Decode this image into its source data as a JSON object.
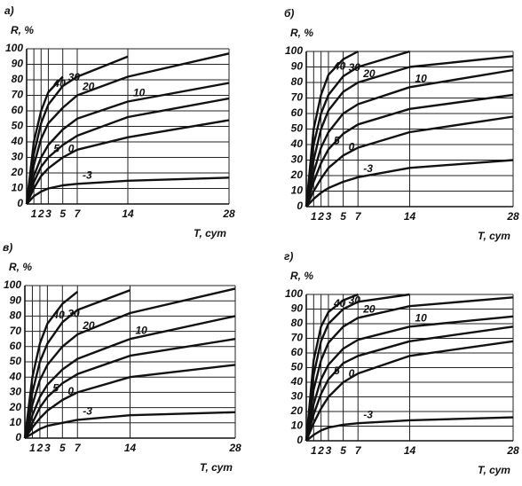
{
  "chart_data": [
    {
      "type": "line",
      "title": "а)",
      "y_label": "R, %",
      "x_label": "T, сут",
      "x": [
        0,
        1,
        2,
        3,
        5,
        7,
        14,
        28
      ],
      "xlim": [
        0,
        28
      ],
      "ylim": [
        0,
        100
      ],
      "xticks": [
        1,
        2,
        3,
        5,
        7,
        14,
        28
      ],
      "yticks": [
        0,
        10,
        20,
        30,
        40,
        50,
        60,
        70,
        80,
        90,
        100
      ],
      "grid": true,
      "series": [
        {
          "name": "40",
          "color": "#111111",
          "values": [
            0,
            40,
            60,
            72,
            82,
            null,
            null,
            null
          ]
        },
        {
          "name": "30",
          "color": "#111111",
          "values": [
            0,
            32,
            52,
            64,
            76,
            82,
            95,
            null
          ]
        },
        {
          "name": "20",
          "color": "#111111",
          "values": [
            0,
            25,
            42,
            52,
            62,
            70,
            82,
            97
          ]
        },
        {
          "name": "10",
          "color": "#111111",
          "values": [
            0,
            18,
            30,
            38,
            48,
            55,
            66,
            78
          ]
        },
        {
          "name": "5",
          "color": "#111111",
          "values": [
            0,
            14,
            24,
            30,
            38,
            44,
            56,
            68
          ]
        },
        {
          "name": "0",
          "color": "#111111",
          "values": [
            0,
            10,
            18,
            23,
            30,
            35,
            43,
            54
          ]
        },
        {
          "name": "-3",
          "color": "#111111",
          "values": [
            0,
            5,
            8,
            10,
            12,
            13,
            15,
            17
          ]
        }
      ]
    },
    {
      "type": "line",
      "title": "б)",
      "y_label": "R, %",
      "x_label": "T, сут",
      "x": [
        0,
        1,
        2,
        3,
        5,
        7,
        14,
        28
      ],
      "xlim": [
        0,
        28
      ],
      "ylim": [
        0,
        100
      ],
      "xticks": [
        1,
        2,
        3,
        5,
        7,
        14,
        28
      ],
      "yticks": [
        0,
        10,
        20,
        30,
        40,
        50,
        60,
        70,
        80,
        90,
        100
      ],
      "grid": true,
      "series": [
        {
          "name": "40",
          "color": "#111111",
          "values": [
            0,
            50,
            72,
            85,
            95,
            100,
            null,
            null
          ]
        },
        {
          "name": "30",
          "color": "#111111",
          "values": [
            0,
            40,
            60,
            72,
            84,
            90,
            100,
            null
          ]
        },
        {
          "name": "20",
          "color": "#111111",
          "values": [
            0,
            30,
            50,
            62,
            74,
            80,
            90,
            97
          ]
        },
        {
          "name": "10",
          "color": "#111111",
          "values": [
            0,
            22,
            38,
            48,
            60,
            66,
            77,
            88
          ]
        },
        {
          "name": "5",
          "color": "#111111",
          "values": [
            0,
            16,
            28,
            37,
            47,
            53,
            63,
            72
          ]
        },
        {
          "name": "0",
          "color": "#111111",
          "values": [
            0,
            10,
            18,
            25,
            33,
            38,
            48,
            58
          ]
        },
        {
          "name": "-3",
          "color": "#111111",
          "values": [
            0,
            5,
            9,
            12,
            16,
            19,
            25,
            30
          ]
        }
      ]
    },
    {
      "type": "line",
      "title": "в)",
      "y_label": "R, %",
      "x_label": "T, сут",
      "x": [
        0,
        1,
        2,
        3,
        5,
        7,
        14,
        28
      ],
      "xlim": [
        0,
        28
      ],
      "ylim": [
        0,
        100
      ],
      "xticks": [
        1,
        2,
        3,
        5,
        7,
        14,
        28
      ],
      "yticks": [
        0,
        10,
        20,
        30,
        40,
        50,
        60,
        70,
        80,
        90,
        100
      ],
      "grid": true,
      "series": [
        {
          "name": "40",
          "color": "#111111",
          "values": [
            0,
            40,
            62,
            75,
            88,
            96,
            null,
            null
          ]
        },
        {
          "name": "30",
          "color": "#111111",
          "values": [
            0,
            30,
            50,
            62,
            76,
            84,
            97,
            null
          ]
        },
        {
          "name": "20",
          "color": "#111111",
          "values": [
            0,
            22,
            38,
            48,
            60,
            68,
            82,
            98
          ]
        },
        {
          "name": "10",
          "color": "#111111",
          "values": [
            0,
            15,
            27,
            35,
            45,
            52,
            65,
            80
          ]
        },
        {
          "name": "5",
          "color": "#111111",
          "values": [
            0,
            10,
            20,
            27,
            36,
            42,
            54,
            65
          ]
        },
        {
          "name": "0",
          "color": "#111111",
          "values": [
            0,
            7,
            13,
            18,
            25,
            30,
            40,
            48
          ]
        },
        {
          "name": "-3",
          "color": "#111111",
          "values": [
            0,
            3,
            6,
            8,
            10,
            12,
            15,
            17
          ]
        }
      ]
    },
    {
      "type": "line",
      "title": "г)",
      "y_label": "R, %",
      "x_label": "T, сут",
      "x": [
        0,
        1,
        2,
        3,
        5,
        7,
        14,
        28
      ],
      "xlim": [
        0,
        28
      ],
      "ylim": [
        0,
        100
      ],
      "xticks": [
        1,
        2,
        3,
        5,
        7,
        14,
        28
      ],
      "yticks": [
        0,
        10,
        20,
        30,
        40,
        50,
        60,
        70,
        80,
        90,
        100
      ],
      "grid": true,
      "series": [
        {
          "name": "40",
          "color": "#111111",
          "values": [
            0,
            55,
            78,
            88,
            96,
            100,
            null,
            null
          ]
        },
        {
          "name": "30",
          "color": "#111111",
          "values": [
            0,
            45,
            68,
            80,
            90,
            95,
            100,
            null
          ]
        },
        {
          "name": "20",
          "color": "#111111",
          "values": [
            0,
            35,
            55,
            67,
            78,
            84,
            92,
            98
          ]
        },
        {
          "name": "10",
          "color": "#111111",
          "values": [
            0,
            25,
            42,
            52,
            63,
            69,
            78,
            85
          ]
        },
        {
          "name": "5",
          "color": "#111111",
          "values": [
            0,
            18,
            32,
            42,
            53,
            58,
            68,
            78
          ]
        },
        {
          "name": "0",
          "color": "#111111",
          "values": [
            0,
            12,
            22,
            30,
            40,
            46,
            58,
            68
          ]
        },
        {
          "name": "-3",
          "color": "#111111",
          "values": [
            0,
            4,
            7,
            9,
            11,
            12,
            14,
            16
          ]
        }
      ]
    }
  ]
}
